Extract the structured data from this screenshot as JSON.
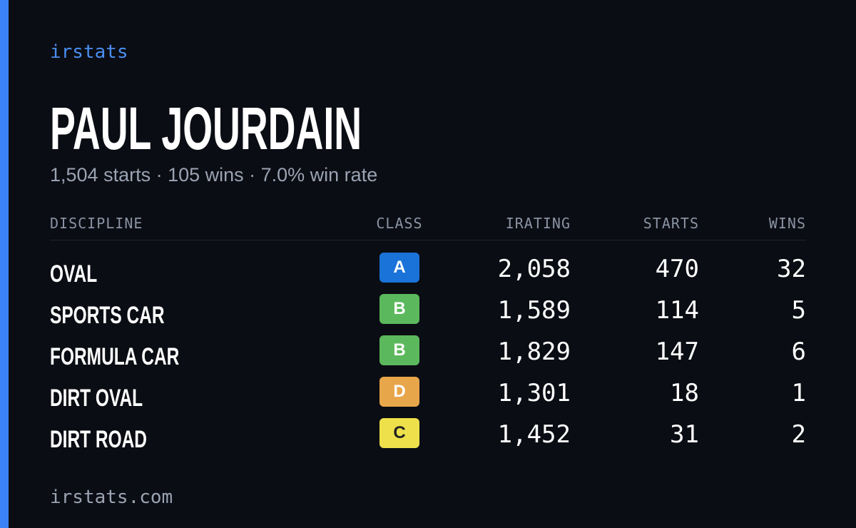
{
  "brand": "irstats",
  "name": "PAUL JOURDAIN",
  "summary": "1,504 starts · 105 wins · 7.0% win rate",
  "table": {
    "headers": [
      "DISCIPLINE",
      "CLASS",
      "IRATING",
      "STARTS",
      "WINS"
    ],
    "rows": [
      {
        "discipline": "OVAL",
        "class": "A",
        "class_color": "#1a73d9",
        "class_text_color": "#ffffff",
        "irating": "2,058",
        "starts": "470",
        "wins": "32"
      },
      {
        "discipline": "SPORTS CAR",
        "class": "B",
        "class_color": "#5cb85c",
        "class_text_color": "#ffffff",
        "irating": "1,589",
        "starts": "114",
        "wins": "5"
      },
      {
        "discipline": "FORMULA CAR",
        "class": "B",
        "class_color": "#5cb85c",
        "class_text_color": "#ffffff",
        "irating": "1,829",
        "starts": "147",
        "wins": "6"
      },
      {
        "discipline": "DIRT OVAL",
        "class": "D",
        "class_color": "#e8a64a",
        "class_text_color": "#ffffff",
        "irating": "1,301",
        "starts": "18",
        "wins": "1"
      },
      {
        "discipline": "DIRT ROAD",
        "class": "C",
        "class_color": "#ede04a",
        "class_text_color": "#222222",
        "irating": "1,452",
        "starts": "31",
        "wins": "2"
      }
    ]
  },
  "footer": "irstats.com"
}
